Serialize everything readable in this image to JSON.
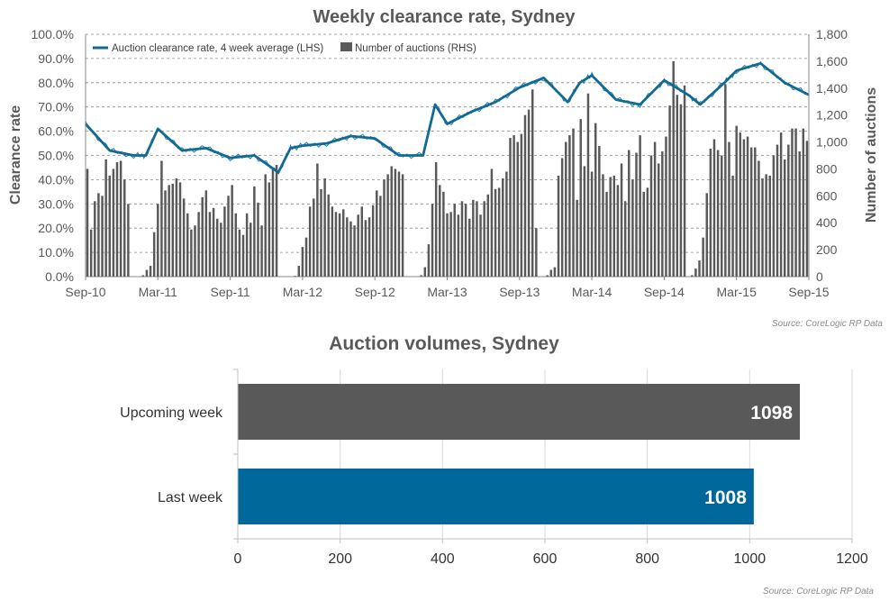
{
  "chart_data": [
    {
      "type": "line",
      "title": "Weekly clearance rate, Sydney",
      "ylabel": "Clearance rate",
      "y2label": "Number of auctions",
      "source": "Source: CoreLogic  RP Data",
      "x_ticks": [
        "Sep-10",
        "Mar-11",
        "Sep-11",
        "Mar-12",
        "Sep-12",
        "Mar-13",
        "Sep-13",
        "Mar-14",
        "Sep-14",
        "Mar-15",
        "Sep-15"
      ],
      "y_ticks": [
        "0.0%",
        "10.0%",
        "20.0%",
        "30.0%",
        "40.0%",
        "50.0%",
        "60.0%",
        "70.0%",
        "80.0%",
        "90.0%",
        "100.0%"
      ],
      "y2_ticks": [
        "0",
        "200",
        "400",
        "600",
        "800",
        "1,000",
        "1,200",
        "1,400",
        "1,600",
        "1,800"
      ],
      "ylim": [
        0,
        100
      ],
      "y2lim": [
        0,
        1800
      ],
      "legend_placement": "top-left",
      "grid": true,
      "colors": {
        "rate": "#0f6a94",
        "auctions": "#595959"
      },
      "series": [
        {
          "name": "Auction clearance rate, 4 week average (LHS)",
          "axis": "left",
          "x": [
            "Sep-10",
            "Nov-10",
            "Jan-11",
            "Feb-11",
            "Mar-11",
            "May-11",
            "Jul-11",
            "Sep-11",
            "Nov-11",
            "Jan-12",
            "Feb-12",
            "Mar-12",
            "May-12",
            "Jul-12",
            "Sep-12",
            "Nov-12",
            "Jan-13",
            "Feb-13",
            "Mar-13",
            "May-13",
            "Jul-13",
            "Sep-13",
            "Nov-13",
            "Jan-14",
            "Feb-14",
            "Mar-14",
            "May-14",
            "Jul-14",
            "Sep-14",
            "Nov-14",
            "Dec-14",
            "Feb-15",
            "Mar-15",
            "May-15",
            "Jul-15",
            "Sep-15"
          ],
          "values": [
            63,
            52,
            50,
            50,
            61,
            52,
            53,
            49,
            50,
            43,
            53,
            54,
            55,
            58,
            57,
            50,
            50,
            71,
            63,
            68,
            72,
            78,
            82,
            72,
            80,
            83,
            73,
            71,
            81,
            75,
            71,
            80,
            85,
            88,
            80,
            75
          ]
        },
        {
          "name": "Number of auctions (RHS)",
          "axis": "right",
          "type": "bar",
          "values": [
            800,
            350,
            560,
            620,
            600,
            870,
            750,
            800,
            850,
            860,
            720,
            540,
            0,
            0,
            0,
            10,
            50,
            80,
            330,
            540,
            860,
            640,
            680,
            690,
            730,
            700,
            580,
            470,
            350,
            380,
            480,
            590,
            640,
            480,
            510,
            430,
            400,
            520,
            600,
            680,
            470,
            350,
            310,
            470,
            400,
            670,
            550,
            380,
            760,
            700,
            810,
            830,
            0,
            0,
            0,
            0,
            5,
            80,
            220,
            290,
            520,
            580,
            840,
            650,
            730,
            610,
            520,
            480,
            470,
            500,
            440,
            410,
            380,
            460,
            520,
            420,
            440,
            530,
            640,
            600,
            720,
            760,
            820,
            800,
            780,
            760,
            0,
            0,
            0,
            0,
            10,
            70,
            240,
            540,
            850,
            680,
            630,
            470,
            480,
            540,
            460,
            560,
            540,
            430,
            570,
            560,
            460,
            560,
            610,
            800,
            650,
            660,
            730,
            780,
            1030,
            1050,
            1000,
            1060,
            1200,
            1240,
            1390,
            360,
            0,
            0,
            10,
            50,
            70,
            750,
            880,
            1000,
            1050,
            1100,
            570,
            1170,
            820,
            1360,
            780,
            1140,
            970,
            760,
            630,
            740,
            750,
            680,
            840,
            560,
            940,
            720,
            920,
            1050,
            630,
            660,
            900,
            1000,
            840,
            930,
            1040,
            1270,
            1600,
            1350,
            1280,
            1420,
            0,
            10,
            60,
            120,
            290,
            620,
            950,
            1020,
            940,
            900,
            1430,
            1000,
            750,
            1120,
            1070,
            1020,
            1040,
            960,
            960,
            860,
            730,
            760,
            750,
            900,
            980,
            1070,
            870,
            980,
            1100,
            1100,
            930,
            1100,
            1008
          ]
        }
      ]
    },
    {
      "type": "bar",
      "orientation": "horizontal",
      "title": "Auction volumes, Sydney",
      "source": "Source: CoreLogic  RP Data",
      "categories": [
        "Upcoming week",
        "Last week"
      ],
      "values": [
        1098,
        1008
      ],
      "colors": [
        "#595959",
        "#00679a"
      ],
      "xlim": [
        0,
        1200
      ],
      "x_ticks": [
        "0",
        "200",
        "400",
        "600",
        "800",
        "1000",
        "1200"
      ],
      "grid": true
    }
  ]
}
